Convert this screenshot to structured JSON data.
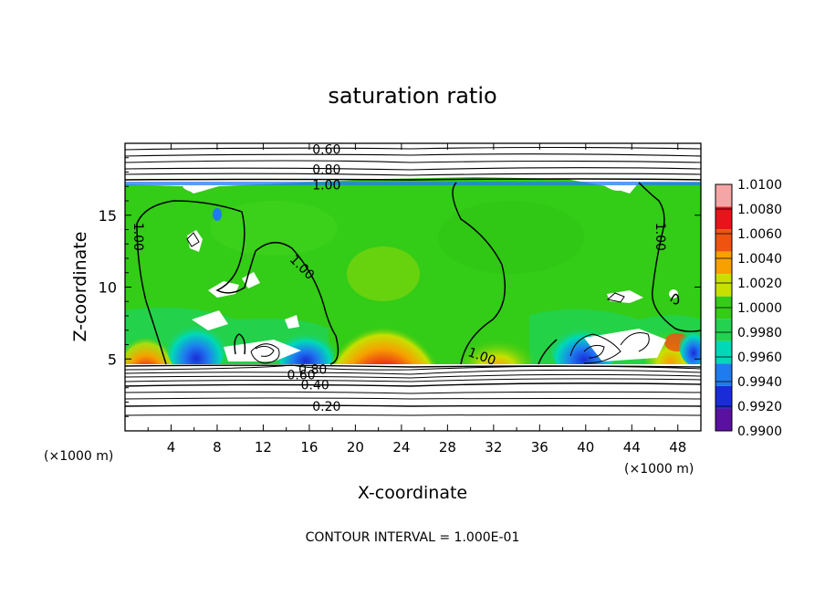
{
  "chart_data": {
    "type": "heatmap",
    "title": "saturation ratio",
    "xlabel": "X-coordinate",
    "ylabel": "Z-coordinate",
    "x_unit_left": "(×1000 m)",
    "x_unit_right": "(×1000 m)",
    "footer": "CONTOUR INTERVAL = 1.000E-01",
    "xlim": [
      0,
      50
    ],
    "ylim": [
      0,
      20
    ],
    "x_ticks": [
      4,
      8,
      12,
      16,
      20,
      24,
      28,
      32,
      36,
      40,
      44,
      48
    ],
    "y_ticks": [
      5,
      10,
      15
    ],
    "contour_labels": [
      {
        "text": "0.60",
        "x": 17.5,
        "y": 19.6
      },
      {
        "text": "0.80",
        "x": 17.5,
        "y": 18.2
      },
      {
        "text": "1.00",
        "x": 17.5,
        "y": 17.1
      },
      {
        "text": "1.00",
        "x": 1.2,
        "y": 13.5
      },
      {
        "text": "1.00",
        "x": 15.4,
        "y": 11.4
      },
      {
        "text": "1.00",
        "x": 46.5,
        "y": 13.5
      },
      {
        "text": "1.00",
        "x": 31.0,
        "y": 5.2
      },
      {
        "text": "0.80",
        "x": 16.3,
        "y": 4.3
      },
      {
        "text": "0.60",
        "x": 15.3,
        "y": 3.9
      },
      {
        "text": "0.40",
        "x": 16.5,
        "y": 3.2
      },
      {
        "text": "0.20",
        "x": 17.5,
        "y": 1.7
      }
    ],
    "colorbar": {
      "labels": [
        "1.0100",
        "1.0080",
        "1.0060",
        "1.0040",
        "1.0020",
        "1.0000",
        "0.9980",
        "0.9960",
        "0.9940",
        "0.9920",
        "0.9900"
      ],
      "colors": [
        "#f4a6a6",
        "#e8141c",
        "#ee5410",
        "#f7a000",
        "#c8e000",
        "#33cc17",
        "#22d250",
        "#00d8b8",
        "#1f7cf0",
        "#1a2cd8",
        "#5a10a0"
      ]
    }
  }
}
